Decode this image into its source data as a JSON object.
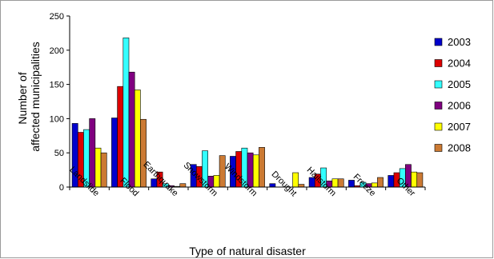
{
  "chart_data": {
    "type": "bar",
    "title": "",
    "xlabel": "Type of natural disaster",
    "ylabel_lines": [
      "Number of",
      "affected municipalities"
    ],
    "ylim": [
      0,
      250
    ],
    "yticks": [
      0,
      50,
      100,
      150,
      200,
      250
    ],
    "grid": false,
    "legend_position": "right",
    "categories": [
      "Landslide",
      "Flood",
      "Earthquake",
      "Snowstorm",
      "Windstorm",
      "Drought",
      "Hailstorm",
      "Freeze",
      "Other"
    ],
    "series": [
      {
        "name": "2003",
        "color": "#0000cc",
        "values": [
          93,
          101,
          12,
          33,
          45,
          5,
          14,
          10,
          17
        ]
      },
      {
        "name": "2004",
        "color": "#dd0000",
        "values": [
          80,
          147,
          22,
          30,
          52,
          0,
          19,
          2,
          21
        ]
      },
      {
        "name": "2005",
        "color": "#33ffff",
        "values": [
          84,
          218,
          5,
          53,
          57,
          0,
          28,
          7,
          27
        ]
      },
      {
        "name": "2006",
        "color": "#800080",
        "values": [
          100,
          168,
          2,
          16,
          50,
          0,
          9,
          5,
          33
        ]
      },
      {
        "name": "2007",
        "color": "#ffff00",
        "values": [
          57,
          142,
          1,
          17,
          47,
          21,
          12,
          6,
          22
        ]
      },
      {
        "name": "2008",
        "color": "#cc7a33",
        "values": [
          50,
          99,
          5,
          46,
          58,
          4,
          12,
          14,
          21
        ]
      }
    ]
  }
}
